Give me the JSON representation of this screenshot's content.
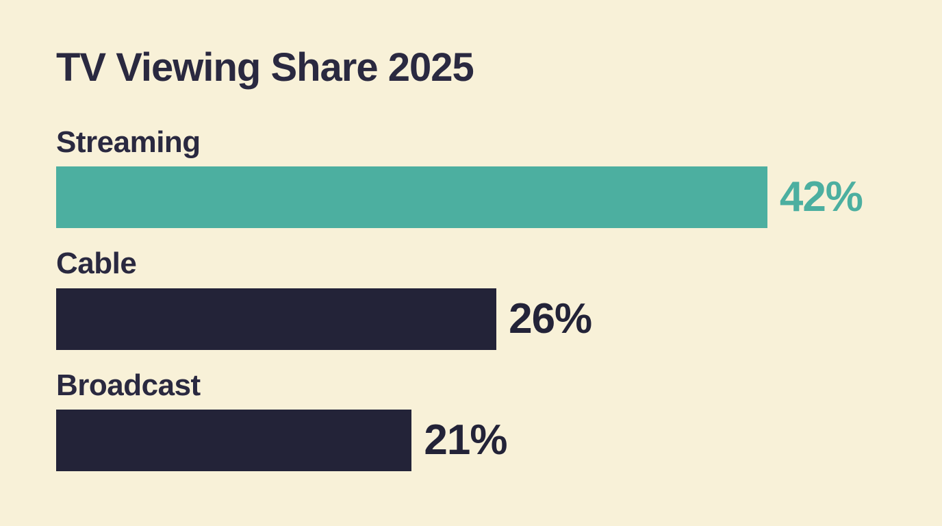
{
  "title": "TV Viewing Share 2025",
  "colors": {
    "background": "#f8f1d8",
    "accent_teal": "#4cafa0",
    "accent_navy": "#232338",
    "text": "#2a2940"
  },
  "chart_data": {
    "type": "bar",
    "orientation": "horizontal",
    "title": "TV Viewing Share 2025",
    "categories": [
      "Streaming",
      "Cable",
      "Broadcast"
    ],
    "values": [
      42,
      26,
      21
    ],
    "value_labels": [
      "42%",
      "26%",
      "21%"
    ],
    "unit": "%",
    "xlim": [
      0,
      49
    ],
    "bar_colors": [
      "#4cafa0",
      "#232338",
      "#232338"
    ],
    "value_label_colors": [
      "#4cafa0",
      "#232338",
      "#232338"
    ],
    "grid": false,
    "legend": false,
    "axis_ticks": false
  }
}
